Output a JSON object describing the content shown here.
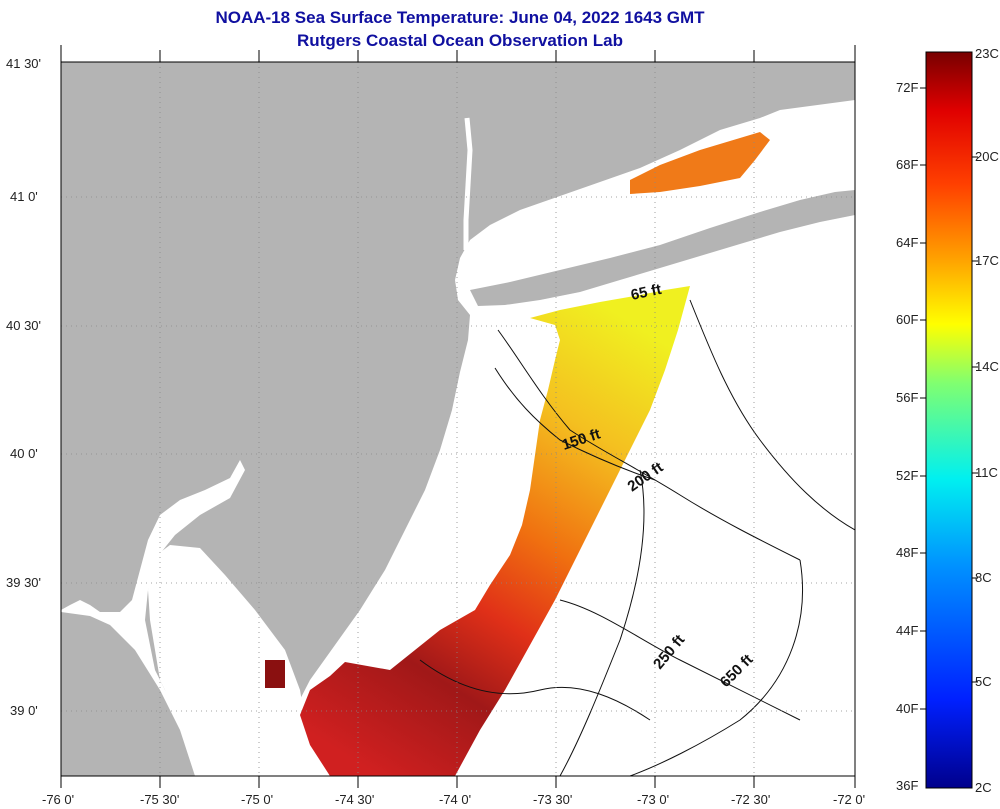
{
  "title": "NOAA-18 Sea Surface Temperature:  June 04, 2022 1643 GMT",
  "subtitle": "Rutgers Coastal Ocean Observation Lab",
  "lat_labels": [
    "41 30'",
    "41 0'",
    "40 30'",
    "40 0'",
    "39 30'",
    "39 0'"
  ],
  "lon_labels": [
    "-76 0'",
    "-75 30'",
    "-75 0'",
    "-74 30'",
    "-74 0'",
    "-73 30'",
    "-73 0'",
    "-72 30'",
    "-72 0'"
  ],
  "contours": [
    "65 ft",
    "150 ft",
    "200 ft",
    "250 ft",
    "650 ft"
  ],
  "colorbar": {
    "fahrenheit": [
      "72F",
      "68F",
      "64F",
      "60F",
      "56F",
      "52F",
      "48F",
      "44F",
      "40F",
      "36F"
    ],
    "celsius": [
      "23C",
      "20C",
      "17C",
      "14C",
      "11C",
      "8C",
      "5C",
      "2C"
    ]
  },
  "colors": {
    "land": "#b4b4b4",
    "water": "#ffffff",
    "title": "#1010a0"
  }
}
